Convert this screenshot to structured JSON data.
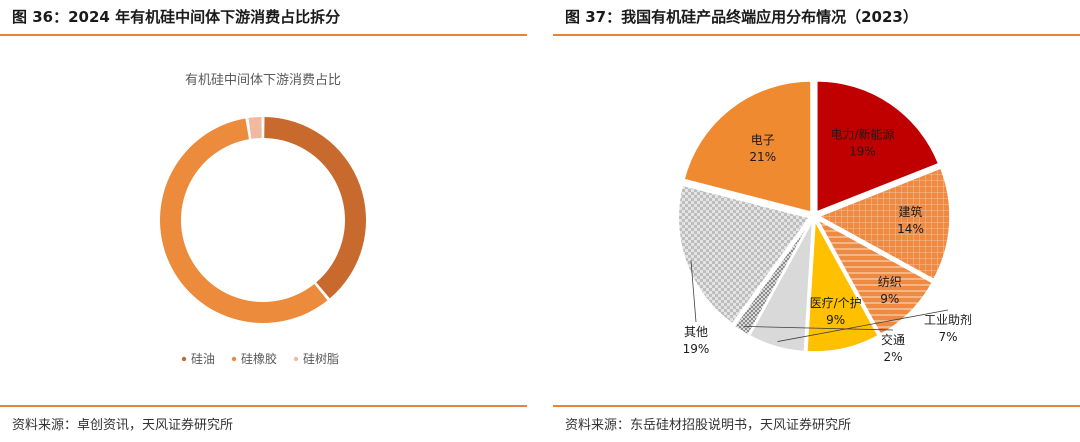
{
  "left_panel": {
    "figure_title": "图 36：2024 年有机硅中间体下游消费占比拆分",
    "source": "资料来源：卓创资讯，天风证券研究所"
  },
  "right_panel": {
    "figure_title": "图 37：我国有机硅产品终端应用分布情况（2023）",
    "source": "资料来源：东岳硅材招股说明书，天风证券研究所"
  },
  "chart_data": [
    {
      "type": "pie",
      "variant": "donut",
      "title": "有机硅中间体下游消费占比",
      "legend_position": "bottom",
      "slices": [
        {
          "label": "硅油",
          "value": 39,
          "color": "#c8692e"
        },
        {
          "label": "硅橡胶",
          "value": 58.5,
          "color": "#ec8b3c"
        },
        {
          "label": "硅树脂",
          "value": 2.5,
          "color": "#f2b9a1"
        }
      ]
    },
    {
      "type": "pie",
      "title": "",
      "legend_position": "none",
      "slices": [
        {
          "label": "电力/新能源",
          "value": 19,
          "display": "19%",
          "color": "#c00000",
          "pattern": "solid"
        },
        {
          "label": "建筑",
          "value": 14,
          "display": "14%",
          "color": "#ee8a42",
          "pattern": "grid"
        },
        {
          "label": "纺织",
          "value": 9,
          "display": "9%",
          "color": "#ee8a42",
          "pattern": "hatch"
        },
        {
          "label": "医疗/个护",
          "value": 9,
          "display": "9%",
          "color": "#ffc000",
          "pattern": "solid"
        },
        {
          "label": "工业助剂",
          "value": 7,
          "display": "7%",
          "color": "#d9d9d9",
          "pattern": "solid"
        },
        {
          "label": "交通",
          "value": 2,
          "display": "2%",
          "color": "#a6a6a6",
          "pattern": "checker"
        },
        {
          "label": "其他",
          "value": 19,
          "display": "19%",
          "color": "#c9c9c9",
          "pattern": "checker"
        },
        {
          "label": "电子",
          "value": 21,
          "display": "21%",
          "color": "#f08a30",
          "pattern": "solid"
        }
      ]
    }
  ]
}
